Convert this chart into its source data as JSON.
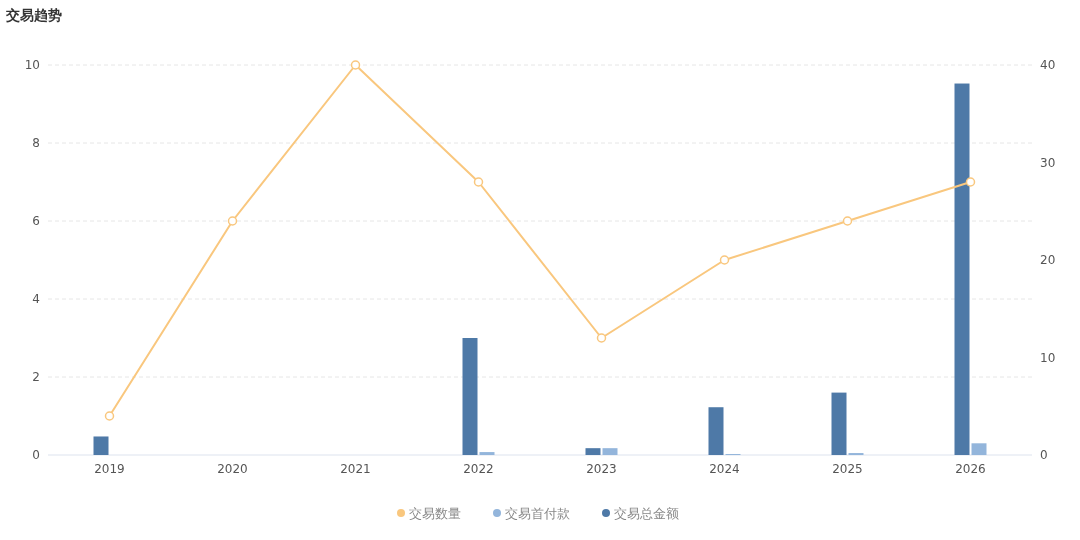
{
  "chart_data": {
    "type": "bar",
    "title": "交易趋势",
    "categories": [
      "2019",
      "2020",
      "2021",
      "2022",
      "2023",
      "2024",
      "2025",
      "2026"
    ],
    "series": [
      {
        "name": "交易数量",
        "type": "line",
        "color": "#f9c77e",
        "marker": "circle",
        "values": [
          1,
          6,
          10,
          7,
          3,
          5,
          6,
          7
        ]
      },
      {
        "name": "交易首付款",
        "axis": "y2",
        "color": "#93b5db",
        "values": [
          null,
          null,
          null,
          0.3,
          0.7,
          0.1,
          0.2,
          1.2
        ]
      },
      {
        "name": "交易总金额",
        "axis": "y2",
        "color": "#4e79a7",
        "values": [
          1.9,
          null,
          null,
          12.0,
          0.7,
          4.9,
          6.4,
          38.1
        ]
      }
    ],
    "ylim": [
      0,
      10
    ],
    "yticks": [
      0,
      2,
      4,
      6,
      8,
      10
    ],
    "y2lim": [
      0,
      40
    ],
    "y2ticks": [
      0,
      10,
      20,
      30,
      40
    ],
    "grid": "y",
    "legend": "bottom"
  }
}
